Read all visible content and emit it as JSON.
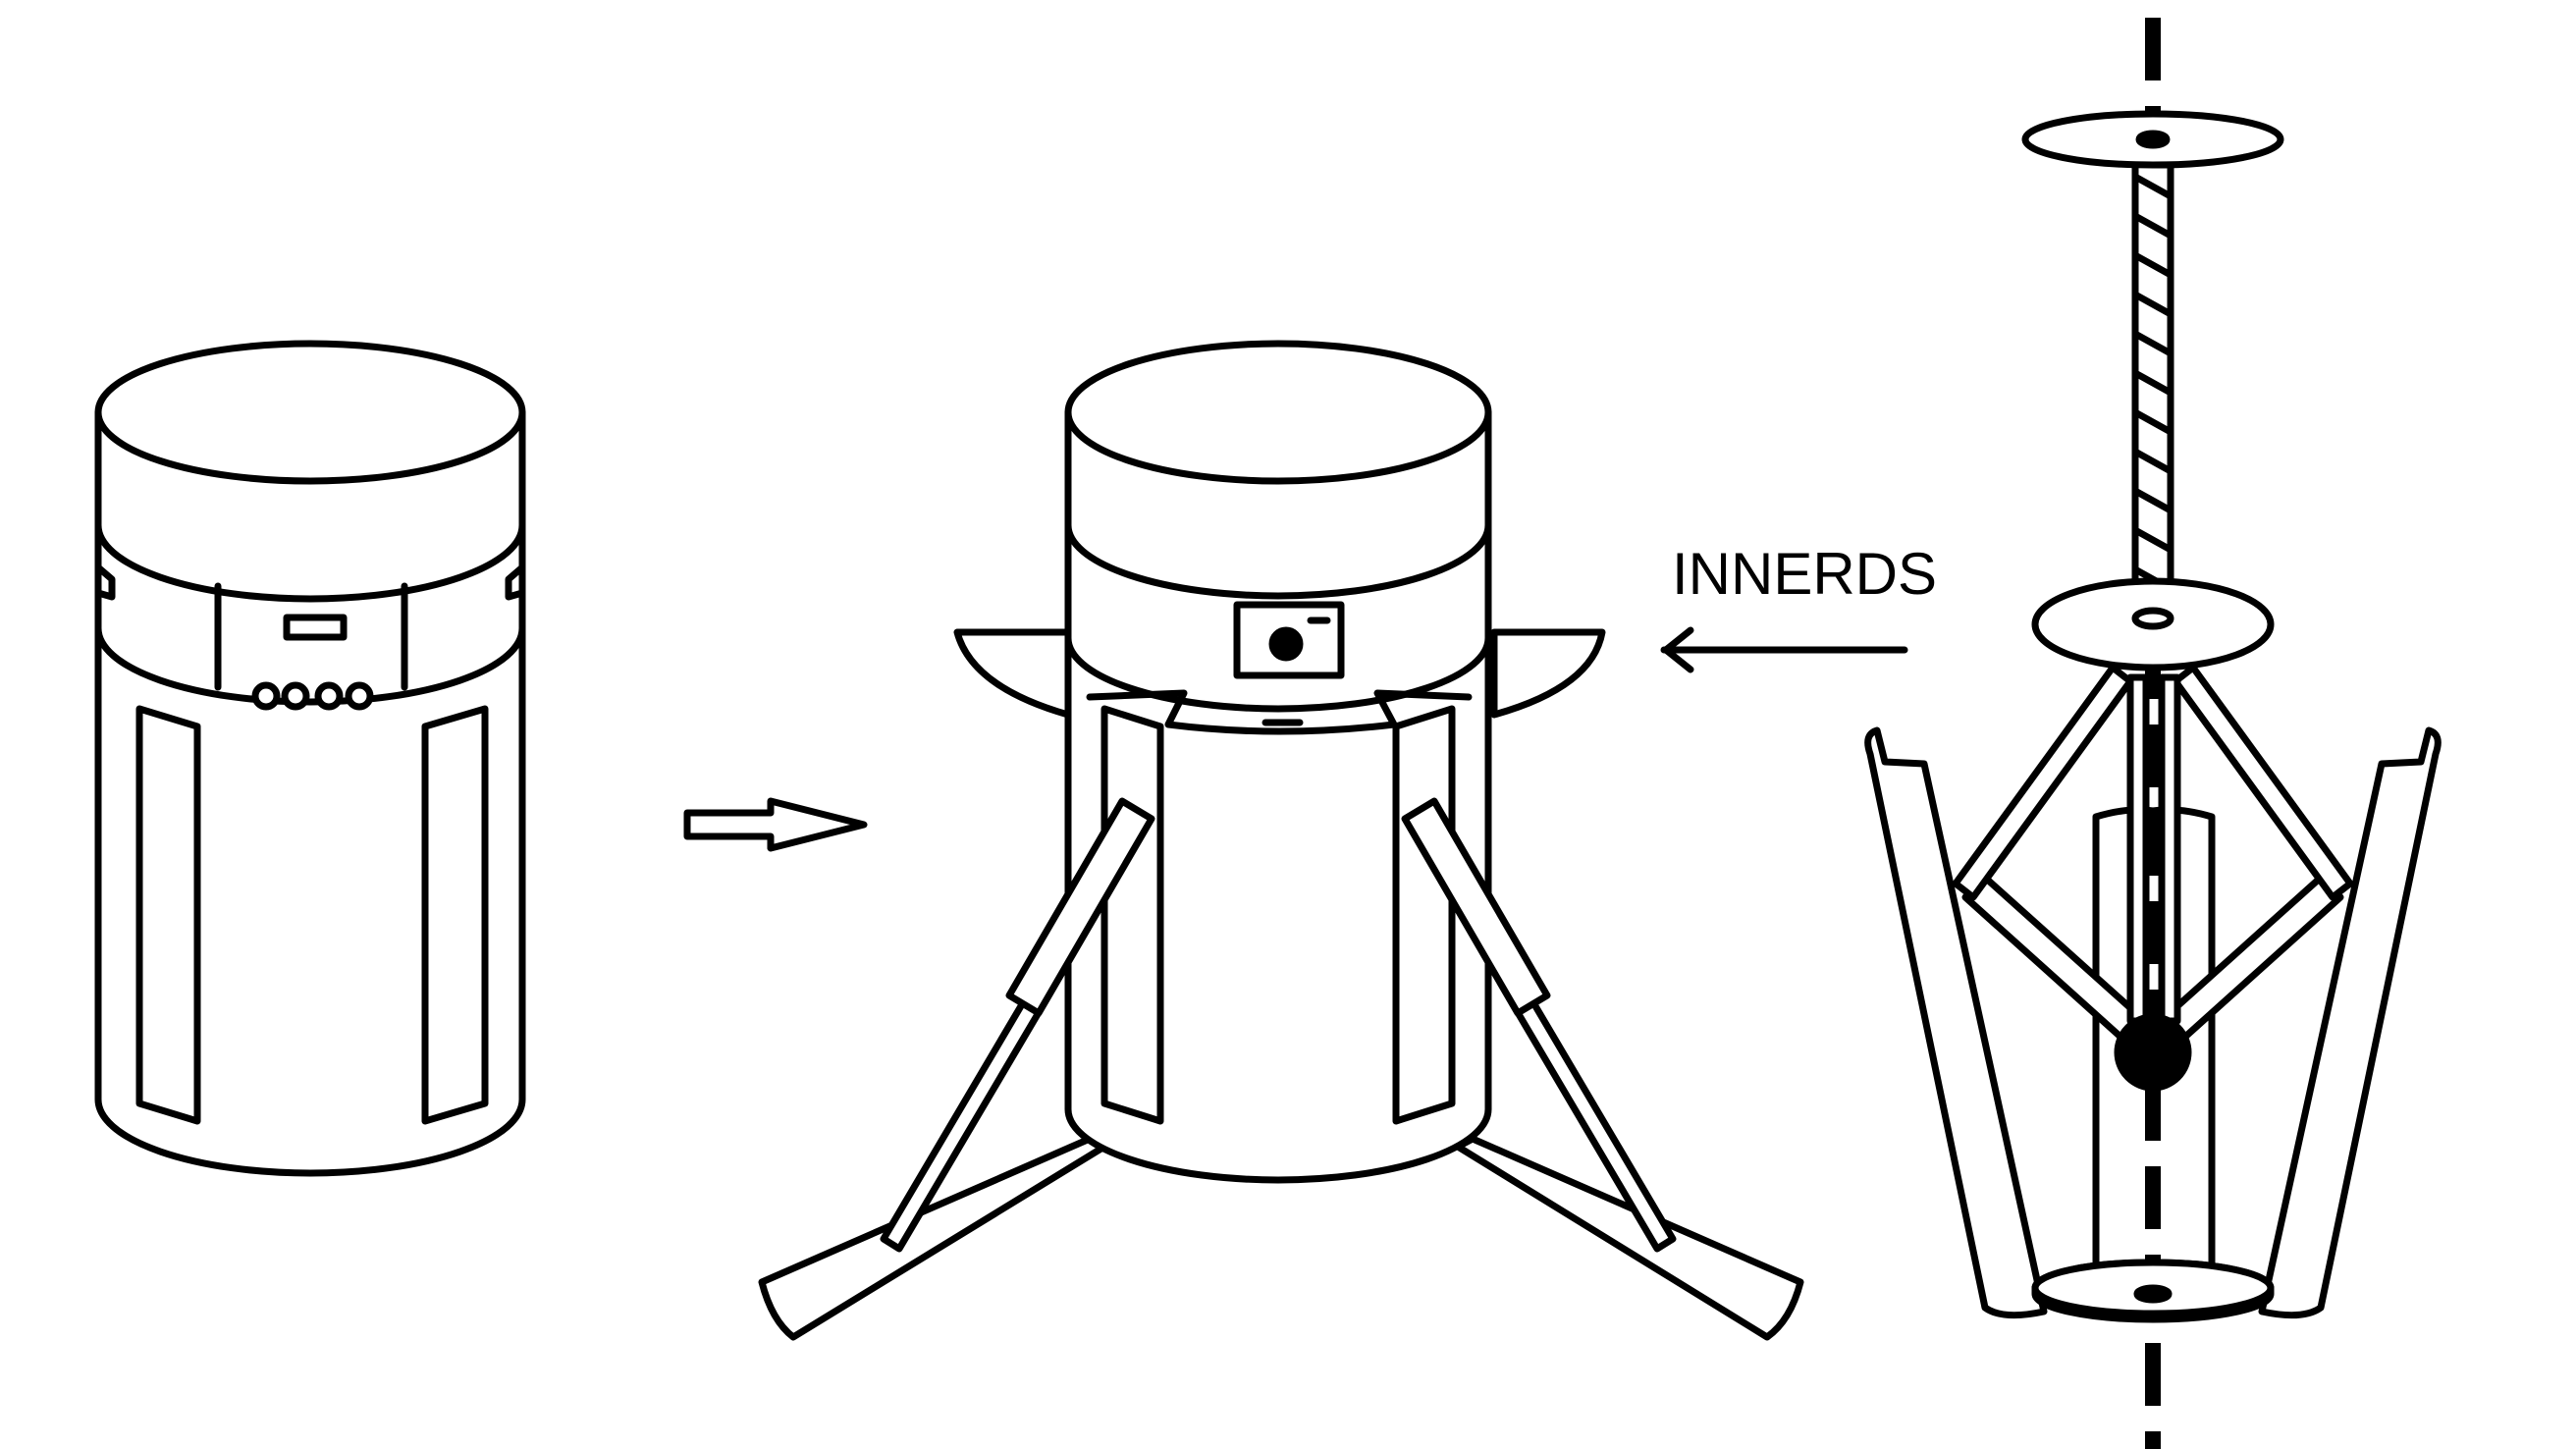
{
  "figure": {
    "label_innerds": "INNERDS",
    "colors": {
      "line": "#000000",
      "background": "#ffffff"
    },
    "panels": [
      {
        "name": "closed-cylinder-unit"
      },
      {
        "name": "deployed-unit-with-legs"
      },
      {
        "name": "innerds-mechanism"
      }
    ],
    "arrows": [
      {
        "name": "transform-arrow",
        "from": "closed-cylinder-unit",
        "to": "deployed-unit-with-legs",
        "style": "hollow-block"
      },
      {
        "name": "innerds-arrow",
        "from": "innerds-mechanism",
        "to": "deployed-unit-with-legs",
        "style": "line"
      }
    ]
  }
}
